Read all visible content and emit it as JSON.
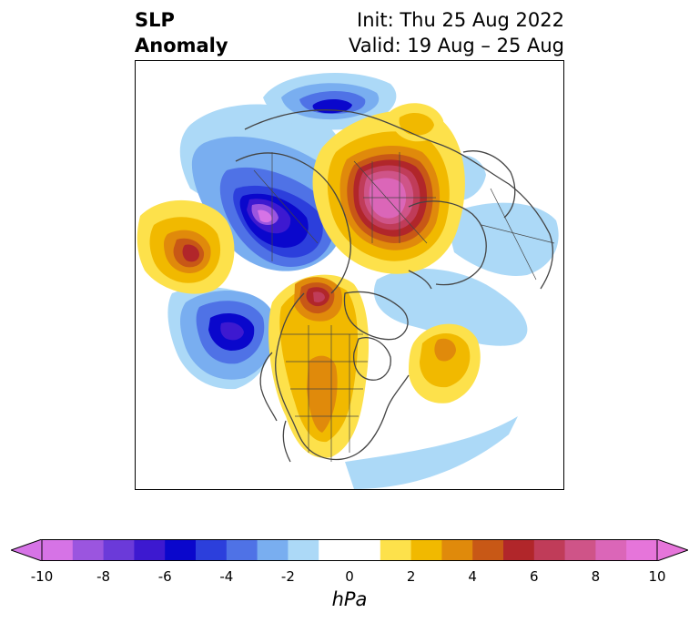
{
  "title": {
    "line1": "SLP",
    "line2": "Anomaly"
  },
  "init": {
    "line1": "Init: Thu 25 Aug 2022",
    "line2": "Valid: 19 Aug – 25 Aug"
  },
  "colorbar": {
    "unit": "hPa",
    "ticks": [
      "-10",
      "-8",
      "-6",
      "-4",
      "-2",
      "0",
      "2",
      "4",
      "6",
      "8",
      "10"
    ],
    "colors": [
      "#d673e6",
      "#9b55df",
      "#6b3ad9",
      "#3d19d0",
      "#0a07cc",
      "#2c3fdc",
      "#4f72e6",
      "#79aef0",
      "#acd9f7",
      "#ffffff",
      "#ffffff",
      "#fde14b",
      "#f1b900",
      "#e08a0b",
      "#c85816",
      "#b1262a",
      "#c03c59",
      "#cf5488",
      "#db66b8",
      "#e675da"
    ]
  },
  "map": {
    "colors": {
      "frame": "#000000",
      "coast": "#444444",
      "pos1": "#fde14b",
      "pos2": "#f1b900",
      "pos3": "#e08a0b",
      "pos4": "#c85816",
      "pos5": "#b1262a",
      "pos6": "#c03c59",
      "pos7": "#cf5488",
      "pos8": "#db66b8",
      "neg1": "#acd9f7",
      "neg2": "#79aef0",
      "neg3": "#4f72e6",
      "neg4": "#2c3fdc",
      "neg5": "#0a07cc",
      "neg6": "#3d19d0",
      "neg7": "#9b55df",
      "neg8": "#d673e6"
    }
  }
}
